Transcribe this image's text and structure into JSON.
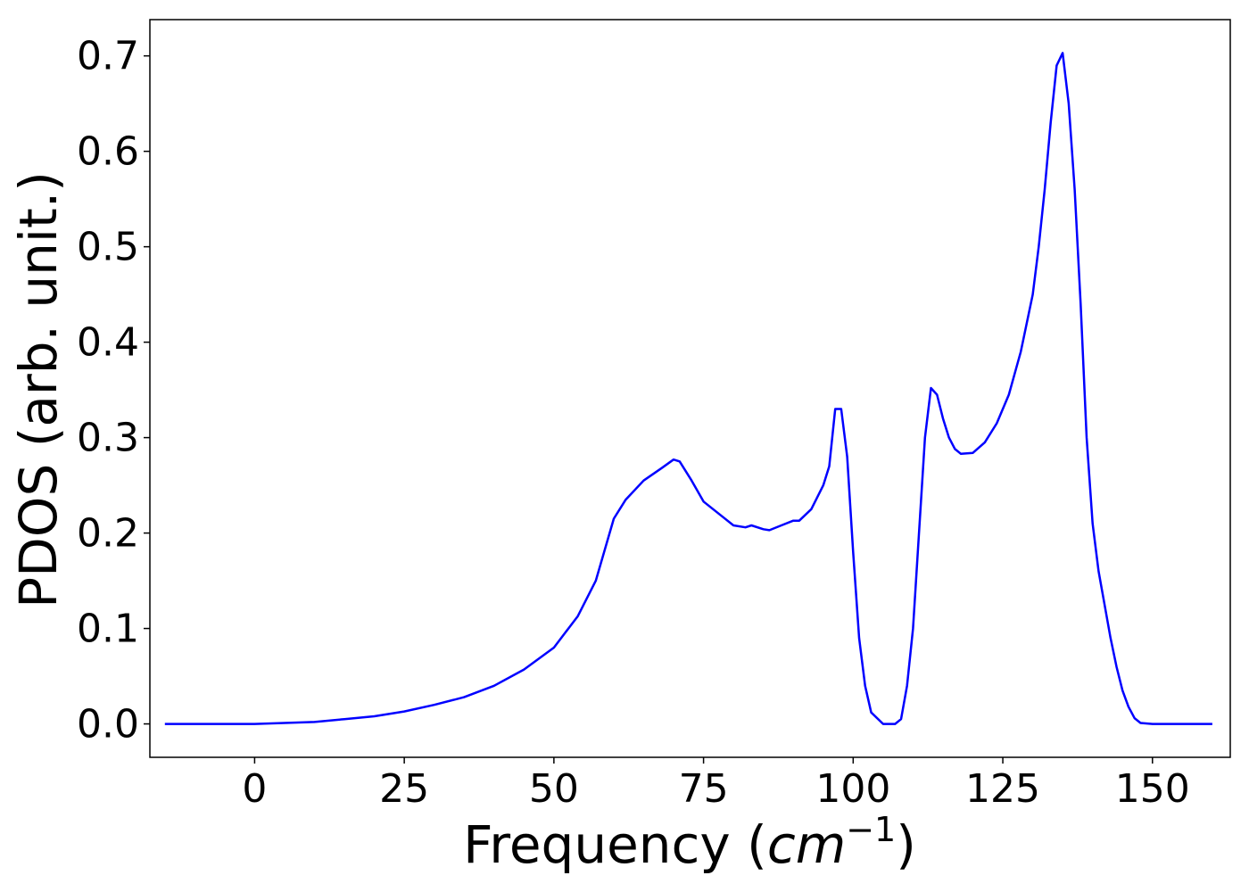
{
  "chart_data": {
    "type": "line",
    "xlabel": "Frequency (",
    "xlabel_math": "cm",
    "xlabel_sup": "−1",
    "xlabel_end": ")",
    "ylabel": "PDOS (arb. unit.)",
    "xlim": [
      -17.5,
      163
    ],
    "ylim": [
      -0.035,
      0.738
    ],
    "xticks": [
      0,
      25,
      50,
      75,
      100,
      125,
      150
    ],
    "xtick_labels": [
      "0",
      "25",
      "50",
      "75",
      "100",
      "125",
      "150"
    ],
    "yticks": [
      0.0,
      0.1,
      0.2,
      0.3,
      0.4,
      0.5,
      0.6,
      0.7
    ],
    "ytick_labels": [
      "0.0",
      "0.1",
      "0.2",
      "0.3",
      "0.4",
      "0.5",
      "0.6",
      "0.7"
    ],
    "grid": false,
    "series": [
      {
        "color": "#0000ff",
        "x": [
          -15,
          0,
          5,
          10,
          15,
          20,
          25,
          30,
          35,
          40,
          45,
          50,
          54,
          57,
          60,
          62,
          65,
          68,
          70,
          71,
          73,
          75,
          78,
          80,
          82,
          83,
          85,
          86,
          88,
          90,
          91,
          93,
          95,
          96,
          97,
          98,
          99,
          100,
          101,
          102,
          103,
          105,
          107,
          108,
          109,
          110,
          111,
          112,
          113,
          114,
          115,
          116,
          117,
          118,
          120,
          122,
          124,
          126,
          128,
          130,
          131,
          132,
          133,
          134,
          135,
          136,
          137,
          138,
          139,
          140,
          141,
          142,
          143,
          144,
          145,
          146,
          147,
          148,
          150,
          155,
          160
        ],
        "y": [
          0.0,
          0.0,
          0.001,
          0.002,
          0.005,
          0.008,
          0.013,
          0.02,
          0.028,
          0.04,
          0.057,
          0.08,
          0.113,
          0.15,
          0.215,
          0.235,
          0.255,
          0.268,
          0.277,
          0.275,
          0.255,
          0.233,
          0.218,
          0.208,
          0.206,
          0.208,
          0.204,
          0.203,
          0.208,
          0.213,
          0.213,
          0.225,
          0.25,
          0.27,
          0.33,
          0.33,
          0.28,
          0.18,
          0.09,
          0.04,
          0.012,
          0.0,
          0.0,
          0.005,
          0.04,
          0.1,
          0.2,
          0.3,
          0.352,
          0.345,
          0.32,
          0.3,
          0.288,
          0.283,
          0.284,
          0.295,
          0.315,
          0.345,
          0.39,
          0.45,
          0.5,
          0.56,
          0.63,
          0.69,
          0.703,
          0.65,
          0.56,
          0.44,
          0.3,
          0.21,
          0.16,
          0.125,
          0.09,
          0.06,
          0.035,
          0.018,
          0.006,
          0.001,
          0.0,
          0.0,
          0.0
        ]
      }
    ]
  }
}
